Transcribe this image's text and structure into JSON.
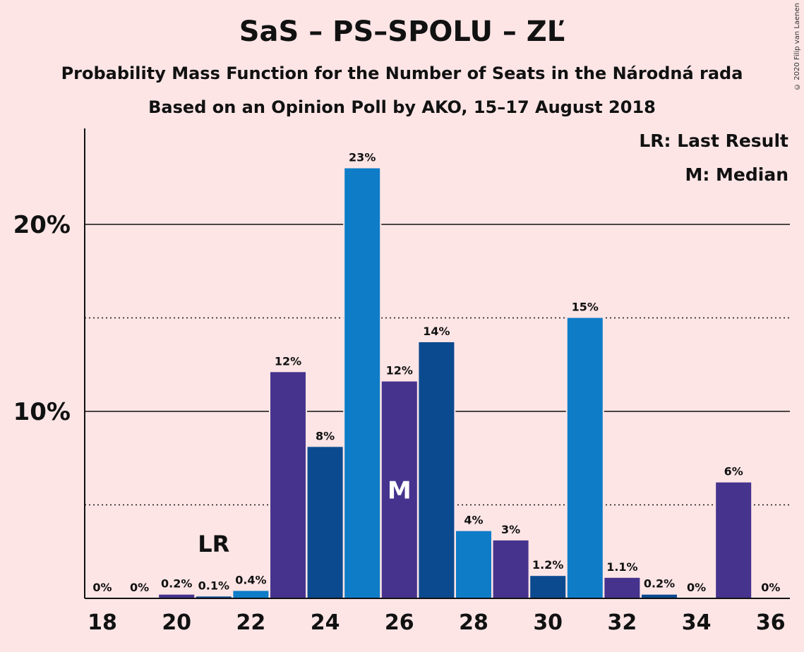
{
  "chart_data": {
    "type": "bar",
    "title": "SaS – PS–SPOLU – ZĽ",
    "subtitle": "Probability Mass Function for the Number of Seats in the Národná rada",
    "subtitle2": "Based on an Opinion Poll by AKO, 15–17 August 2018",
    "copyright": "© 2020 Filip van Laenen",
    "legend": [
      "LR: Last Result",
      "M: Median"
    ],
    "legend_position": "top-right",
    "xlabel": "",
    "ylabel": "",
    "x": [
      18,
      19,
      20,
      21,
      22,
      23,
      24,
      25,
      26,
      27,
      28,
      29,
      30,
      31,
      32,
      33,
      34,
      35,
      36
    ],
    "values": [
      0,
      0,
      0.2,
      0.1,
      0.4,
      12.1,
      8.1,
      23.0,
      11.6,
      13.7,
      3.6,
      3.1,
      1.2,
      15.0,
      1.1,
      0.2,
      0,
      6.2,
      0
    ],
    "labels": [
      "0%",
      "0%",
      "0.2%",
      "0.1%",
      "0.4%",
      "12%",
      "8%",
      "23%",
      "12%",
      "14%",
      "4%",
      "3%",
      "1.2%",
      "15%",
      "1.1%",
      "0.2%",
      "0%",
      "6%",
      "0%"
    ],
    "x_ticks": [
      "18",
      "20",
      "22",
      "24",
      "26",
      "28",
      "30",
      "32",
      "34",
      "36"
    ],
    "y_ticks": [
      "10%",
      "20%"
    ],
    "ylim": [
      0,
      25
    ],
    "grid_solid": [
      10,
      20
    ],
    "grid_dotted": [
      5,
      15
    ],
    "last_result": {
      "x": 21,
      "label": "LR"
    },
    "median": {
      "x": 26,
      "label": "M"
    },
    "colors": [
      "#0b4a8f",
      "#0e7cc7",
      "#46338e"
    ]
  }
}
